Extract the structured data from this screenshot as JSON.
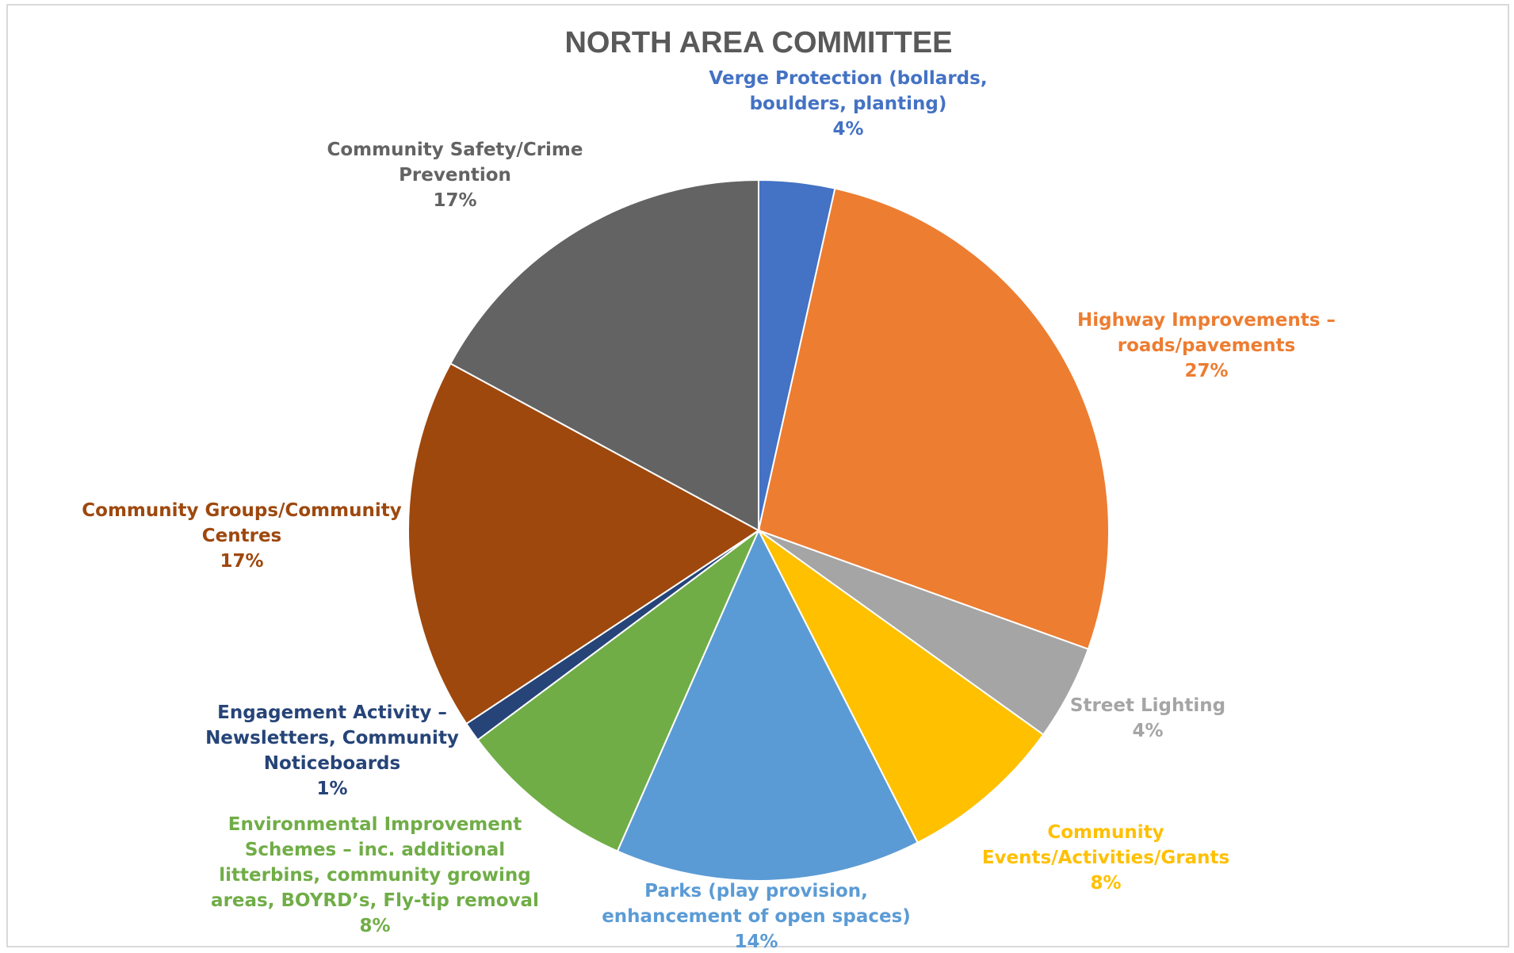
{
  "chart_data": {
    "type": "pie",
    "title": "NORTH AREA COMMITTEE",
    "start_angle_deg": 0,
    "direction": "clockwise",
    "slices": [
      {
        "name": "Verge Protection (bollards, boulders, planting)",
        "label_lines": [
          "Verge Protection (bollards,",
          "boulders, planting)"
        ],
        "percent_label": "4%",
        "value": 3.5,
        "color": "#4472C4"
      },
      {
        "name": "Highway Improvements – roads/pavements",
        "label_lines": [
          "Highway Improvements –",
          "roads/pavements"
        ],
        "percent_label": "27%",
        "value": 27,
        "color": "#ED7D31"
      },
      {
        "name": "Street Lighting",
        "label_lines": [
          "Street Lighting"
        ],
        "percent_label": "4%",
        "value": 4.4,
        "color": "#A5A5A5"
      },
      {
        "name": "Community Events/Activities/Grants",
        "label_lines": [
          "Community",
          "Events/Activities/Grants"
        ],
        "percent_label": "8%",
        "value": 7.6,
        "color": "#FFC000"
      },
      {
        "name": "Parks (play provision, enhancement of open spaces)",
        "label_lines": [
          "Parks (play provision,",
          "enhancement of open spaces)"
        ],
        "percent_label": "14%",
        "value": 14.1,
        "color": "#5B9BD5"
      },
      {
        "name": "Environmental Improvement Schemes – inc. additional litterbins, community growing areas, BOYRD’s, Fly-tip removal",
        "label_lines": [
          "Environmental Improvement",
          "Schemes – inc. additional",
          "litterbins, community growing",
          "areas, BOYRD’s, Fly-tip removal"
        ],
        "percent_label": "8%",
        "value": 8.2,
        "color": "#70AD47"
      },
      {
        "name": "Engagement Activity – Newsletters, Community Noticeboards",
        "label_lines": [
          "Engagement Activity –",
          "Newsletters, Community",
          "Noticeboards"
        ],
        "percent_label": "1%",
        "value": 0.9,
        "color": "#264478"
      },
      {
        "name": "Community Groups/Community Centres",
        "label_lines": [
          "Community Groups/Community",
          "Centres"
        ],
        "percent_label": "17%",
        "value": 17.2,
        "color": "#9E480E"
      },
      {
        "name": "Community Safety/Crime Prevention",
        "label_lines": [
          "Community Safety/Crime",
          "Prevention"
        ],
        "percent_label": "17%",
        "value": 17.1,
        "color": "#636363"
      }
    ],
    "label_colors": [
      "#4472C4",
      "#ED7D31",
      "#A5A5A5",
      "#FFC000",
      "#5B9BD5",
      "#70AD47",
      "#264478",
      "#9E480E",
      "#636363"
    ]
  }
}
